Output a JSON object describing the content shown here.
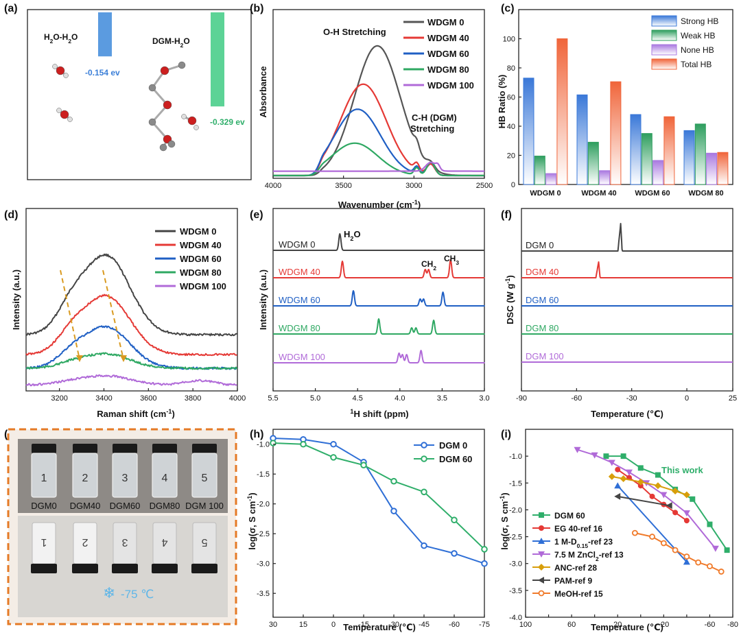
{
  "chart_data": [
    {
      "panel": "(a)",
      "type": "other",
      "labels": {
        "left_title": "H2O-H2O",
        "left_energy": "-0.154 ev",
        "right_title": "DGM-H2O",
        "right_energy": "-0.329 ev"
      },
      "values": {
        "H2O-H2O": -0.154,
        "DGM-H2O": -0.329
      },
      "colors": {
        "H2O-H2O": "#5b9be0",
        "DGM-H2O": "#5cd396"
      }
    },
    {
      "panel": "(b)",
      "type": "line",
      "xlabel": "Wavenumber (cm-1)",
      "ylabel": "Absorbance",
      "xlim": [
        4000,
        2500
      ],
      "xticks": [
        4000,
        3500,
        3000,
        2500
      ],
      "annotations": {
        "oh": "O-H Stretching",
        "ch1": "C-H (DGM)",
        "ch2": "Stretching"
      },
      "series": [
        {
          "name": "WDGM 0",
          "color": "#555555",
          "peak_x": 3260,
          "peak_height": 0.88
        },
        {
          "name": "WDGM 40",
          "color": "#e53935",
          "peak_x": 3360,
          "peak_height": 0.62
        },
        {
          "name": "WDGM 60",
          "color": "#1f5fc4",
          "peak_x": 3400,
          "peak_height": 0.45
        },
        {
          "name": "WDGM 80",
          "color": "#2ea862",
          "peak_x": 3420,
          "peak_height": 0.22
        },
        {
          "name": "WDGM 100",
          "color": "#b06ad8",
          "peak_x": 2880,
          "peak_height": 0.06
        }
      ]
    },
    {
      "panel": "(c)",
      "type": "bar",
      "ylabel": "HB Ratio (%)",
      "ylim": [
        0,
        120
      ],
      "yticks": [
        0,
        20,
        40,
        60,
        80,
        100
      ],
      "categories": [
        "WDGM 0",
        "WDGM 40",
        "WDGM 60",
        "WDGM 80"
      ],
      "series": [
        {
          "name": "Strong HB",
          "color": "#3a78d8",
          "values": [
            73,
            61.5,
            48,
            37
          ]
        },
        {
          "name": "Weak HB",
          "color": "#2e9e5e",
          "values": [
            19.5,
            29,
            35,
            41.5
          ]
        },
        {
          "name": "None HB",
          "color": "#a978e0",
          "values": [
            7.5,
            9.5,
            16.5,
            21.5
          ]
        },
        {
          "name": "Total HB",
          "color": "#f0653a",
          "values": [
            100,
            70.5,
            46.5,
            22
          ]
        }
      ]
    },
    {
      "panel": "(d)",
      "type": "line",
      "xlabel": "Raman shift (cm-1)",
      "ylabel": "Intensity (a.u.)",
      "xlim": [
        3050,
        4000
      ],
      "xticks": [
        3200,
        3400,
        3600,
        3800,
        4000
      ],
      "series": [
        {
          "name": "WDGM 0",
          "color": "#444444"
        },
        {
          "name": "WDGM 40",
          "color": "#e53935"
        },
        {
          "name": "WDGM 60",
          "color": "#1f5fc4"
        },
        {
          "name": "WDGM 80",
          "color": "#2ea862"
        },
        {
          "name": "WDGM 100",
          "color": "#b06ad8"
        }
      ]
    },
    {
      "panel": "(e)",
      "type": "line",
      "xlabel": "1H shift (ppm)",
      "ylabel": "Intensity (a.u.)",
      "xlim": [
        5.5,
        3.0
      ],
      "xticks": [
        5.5,
        5.0,
        4.5,
        4.0,
        3.5,
        3.0
      ],
      "annotations": {
        "h2o": "H2O",
        "ch2": "CH2",
        "ch3": "CH3"
      },
      "series": [
        {
          "name": "WDGM 0",
          "color": "#444444",
          "peaks": [
            4.71
          ]
        },
        {
          "name": "WDGM 40",
          "color": "#e53935",
          "peaks": [
            4.68,
            3.7,
            3.66,
            3.4
          ]
        },
        {
          "name": "WDGM 60",
          "color": "#1f5fc4",
          "peaks": [
            4.55,
            3.76,
            3.72,
            3.49
          ]
        },
        {
          "name": "WDGM 80",
          "color": "#2ea862",
          "peaks": [
            4.25,
            3.86,
            3.81,
            3.6
          ]
        },
        {
          "name": "WDGM 100",
          "color": "#b06ad8",
          "peaks": [
            4.01,
            3.97,
            3.92,
            3.75
          ]
        }
      ]
    },
    {
      "panel": "(f)",
      "type": "line",
      "xlabel": "Temperature (℃)",
      "ylabel": "DSC (W g-1)",
      "xlim": [
        -90,
        25
      ],
      "xticks": [
        -90,
        -60,
        -30,
        0,
        25
      ],
      "series": [
        {
          "name": "DGM 0",
          "color": "#444444",
          "peak_x": -36
        },
        {
          "name": "DGM 40",
          "color": "#e53935",
          "peak_x": -48
        },
        {
          "name": "DGM 60",
          "color": "#1f5fc4"
        },
        {
          "name": "DGM 80",
          "color": "#2ea862"
        },
        {
          "name": "DGM 100",
          "color": "#b06ad8"
        }
      ]
    },
    {
      "panel": "(g)",
      "type": "other",
      "vial_labels": [
        "DGM0",
        "DGM40",
        "DGM60",
        "DGM80",
        "DGM 100"
      ],
      "vial_numbers": [
        "1",
        "2",
        "3",
        "4",
        "5"
      ],
      "cold_label": "-75 ℃"
    },
    {
      "panel": "(h)",
      "type": "line",
      "xlabel": "Temperature (℃)",
      "ylabel": "log(σ, S cm-1)",
      "xlim": [
        30,
        -75
      ],
      "ylim": [
        -3.9,
        -0.75
      ],
      "xticks": [
        30,
        15,
        0,
        -15,
        -30,
        -45,
        -60,
        -75
      ],
      "yticks": [
        -1.0,
        -1.5,
        -2.0,
        -2.5,
        -3.0,
        -3.5
      ],
      "series": [
        {
          "name": "DGM 0",
          "color": "#2f6fd6",
          "x": [
            30,
            15,
            0,
            -15,
            -30,
            -45,
            -60,
            -75
          ],
          "y": [
            -0.9,
            -0.92,
            -1.0,
            -1.3,
            -2.12,
            -2.7,
            -2.83,
            -3.0
          ]
        },
        {
          "name": "DGM 60",
          "color": "#2fae6a",
          "x": [
            30,
            15,
            0,
            -15,
            -30,
            -45,
            -60,
            -75
          ],
          "y": [
            -0.98,
            -1.0,
            -1.22,
            -1.35,
            -1.62,
            -1.8,
            -2.27,
            -2.76
          ]
        }
      ]
    },
    {
      "panel": "(i)",
      "type": "line",
      "xlabel": "Temperature (℃)",
      "ylabel": "log(σ, S cm-1)",
      "xlim": [
        100,
        -80
      ],
      "ylim": [
        -4.0,
        -0.5
      ],
      "xticks": [
        100,
        80,
        60,
        40,
        20,
        0,
        -20,
        -40,
        -60,
        -80
      ],
      "xticklabels": [
        "100",
        "",
        "60",
        "",
        "20",
        "",
        "-20",
        "",
        "-60",
        "-80"
      ],
      "yticks": [
        -1.0,
        -1.5,
        -2.0,
        -2.5,
        -3.0,
        -3.5,
        -4.0
      ],
      "annotation": "This work",
      "series": [
        {
          "name": "DGM 60",
          "color": "#2fae6a",
          "marker": "square",
          "x": [
            30,
            15,
            0,
            -15,
            -30,
            -45,
            -60,
            -75
          ],
          "y": [
            -1.0,
            -1.0,
            -1.22,
            -1.35,
            -1.62,
            -1.8,
            -2.27,
            -2.75
          ]
        },
        {
          "name": "EG 40-ref 16",
          "color": "#e53935",
          "marker": "circle",
          "x": [
            20,
            10,
            0,
            -10,
            -20,
            -30,
            -40
          ],
          "y": [
            -1.25,
            -1.4,
            -1.55,
            -1.75,
            -1.9,
            -2.05,
            -2.2
          ]
        },
        {
          "name": "1 M-D0.15-ref 23",
          "color": "#2f6fd6",
          "marker": "triangle-up",
          "x": [
            20,
            -40
          ],
          "y": [
            -1.55,
            -2.97
          ]
        },
        {
          "name": "7.5 M ZnCl2-ref 13",
          "color": "#b06ad8",
          "marker": "triangle-down",
          "x": [
            55,
            40,
            25,
            10,
            -5,
            -20,
            -40,
            -65
          ],
          "y": [
            -0.88,
            -0.98,
            -1.12,
            -1.3,
            -1.5,
            -1.72,
            -2.06,
            -2.72
          ]
        },
        {
          "name": "ANC-ref 28",
          "color": "#d89e0a",
          "marker": "diamond",
          "x": [
            25,
            15,
            0,
            -15,
            -30,
            -40
          ],
          "y": [
            -1.38,
            -1.42,
            -1.48,
            -1.55,
            -1.65,
            -1.72
          ]
        },
        {
          "name": "PAM-ref 9",
          "color": "#444444",
          "marker": "triangle-left",
          "x": [
            20,
            -25
          ],
          "y": [
            -1.75,
            -1.92
          ]
        },
        {
          "name": "MeOH-ref 15",
          "color": "#f07a2a",
          "marker": "circle-open",
          "x": [
            5,
            -10,
            -20,
            -30,
            -40,
            -50,
            -60,
            -70
          ],
          "y": [
            -2.43,
            -2.5,
            -2.62,
            -2.75,
            -2.87,
            -2.98,
            -3.05,
            -3.15
          ]
        }
      ]
    }
  ]
}
